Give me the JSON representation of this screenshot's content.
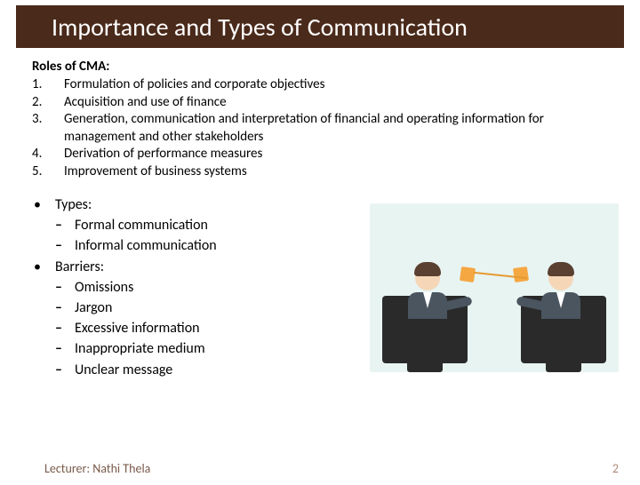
{
  "title": "Importance and Types of Communication",
  "roles": {
    "heading": "Roles of CMA:",
    "items": [
      {
        "num": "1.",
        "text": "Formulation of policies and corporate objectives"
      },
      {
        "num": "2.",
        "text": "Acquisition and use of finance"
      },
      {
        "num": "3.",
        "text": "Generation, communication and interpretation of financial and operating information for management and other stakeholders"
      },
      {
        "num": "4.",
        "text": "Derivation of performance measures"
      },
      {
        "num": "5.",
        "text": "Improvement of business systems"
      }
    ]
  },
  "bullets": [
    {
      "label": "Types:",
      "subs": [
        "Formal communication",
        "Informal communication"
      ]
    },
    {
      "label": "Barriers:",
      "subs": [
        "Omissions",
        "Jargon",
        "Excessive information",
        "Inappropriate medium",
        "Unclear message"
      ]
    }
  ],
  "footer": {
    "lecturer": "Lecturer: Nathi Thela",
    "page": "2"
  },
  "colors": {
    "title_bar": "#4a2a1a",
    "title_text": "#ffffff",
    "body_text": "#000000",
    "footer_text": "#7a5a4a",
    "illustration_bg": "#e8f4f2",
    "cup": "#f5a742"
  }
}
